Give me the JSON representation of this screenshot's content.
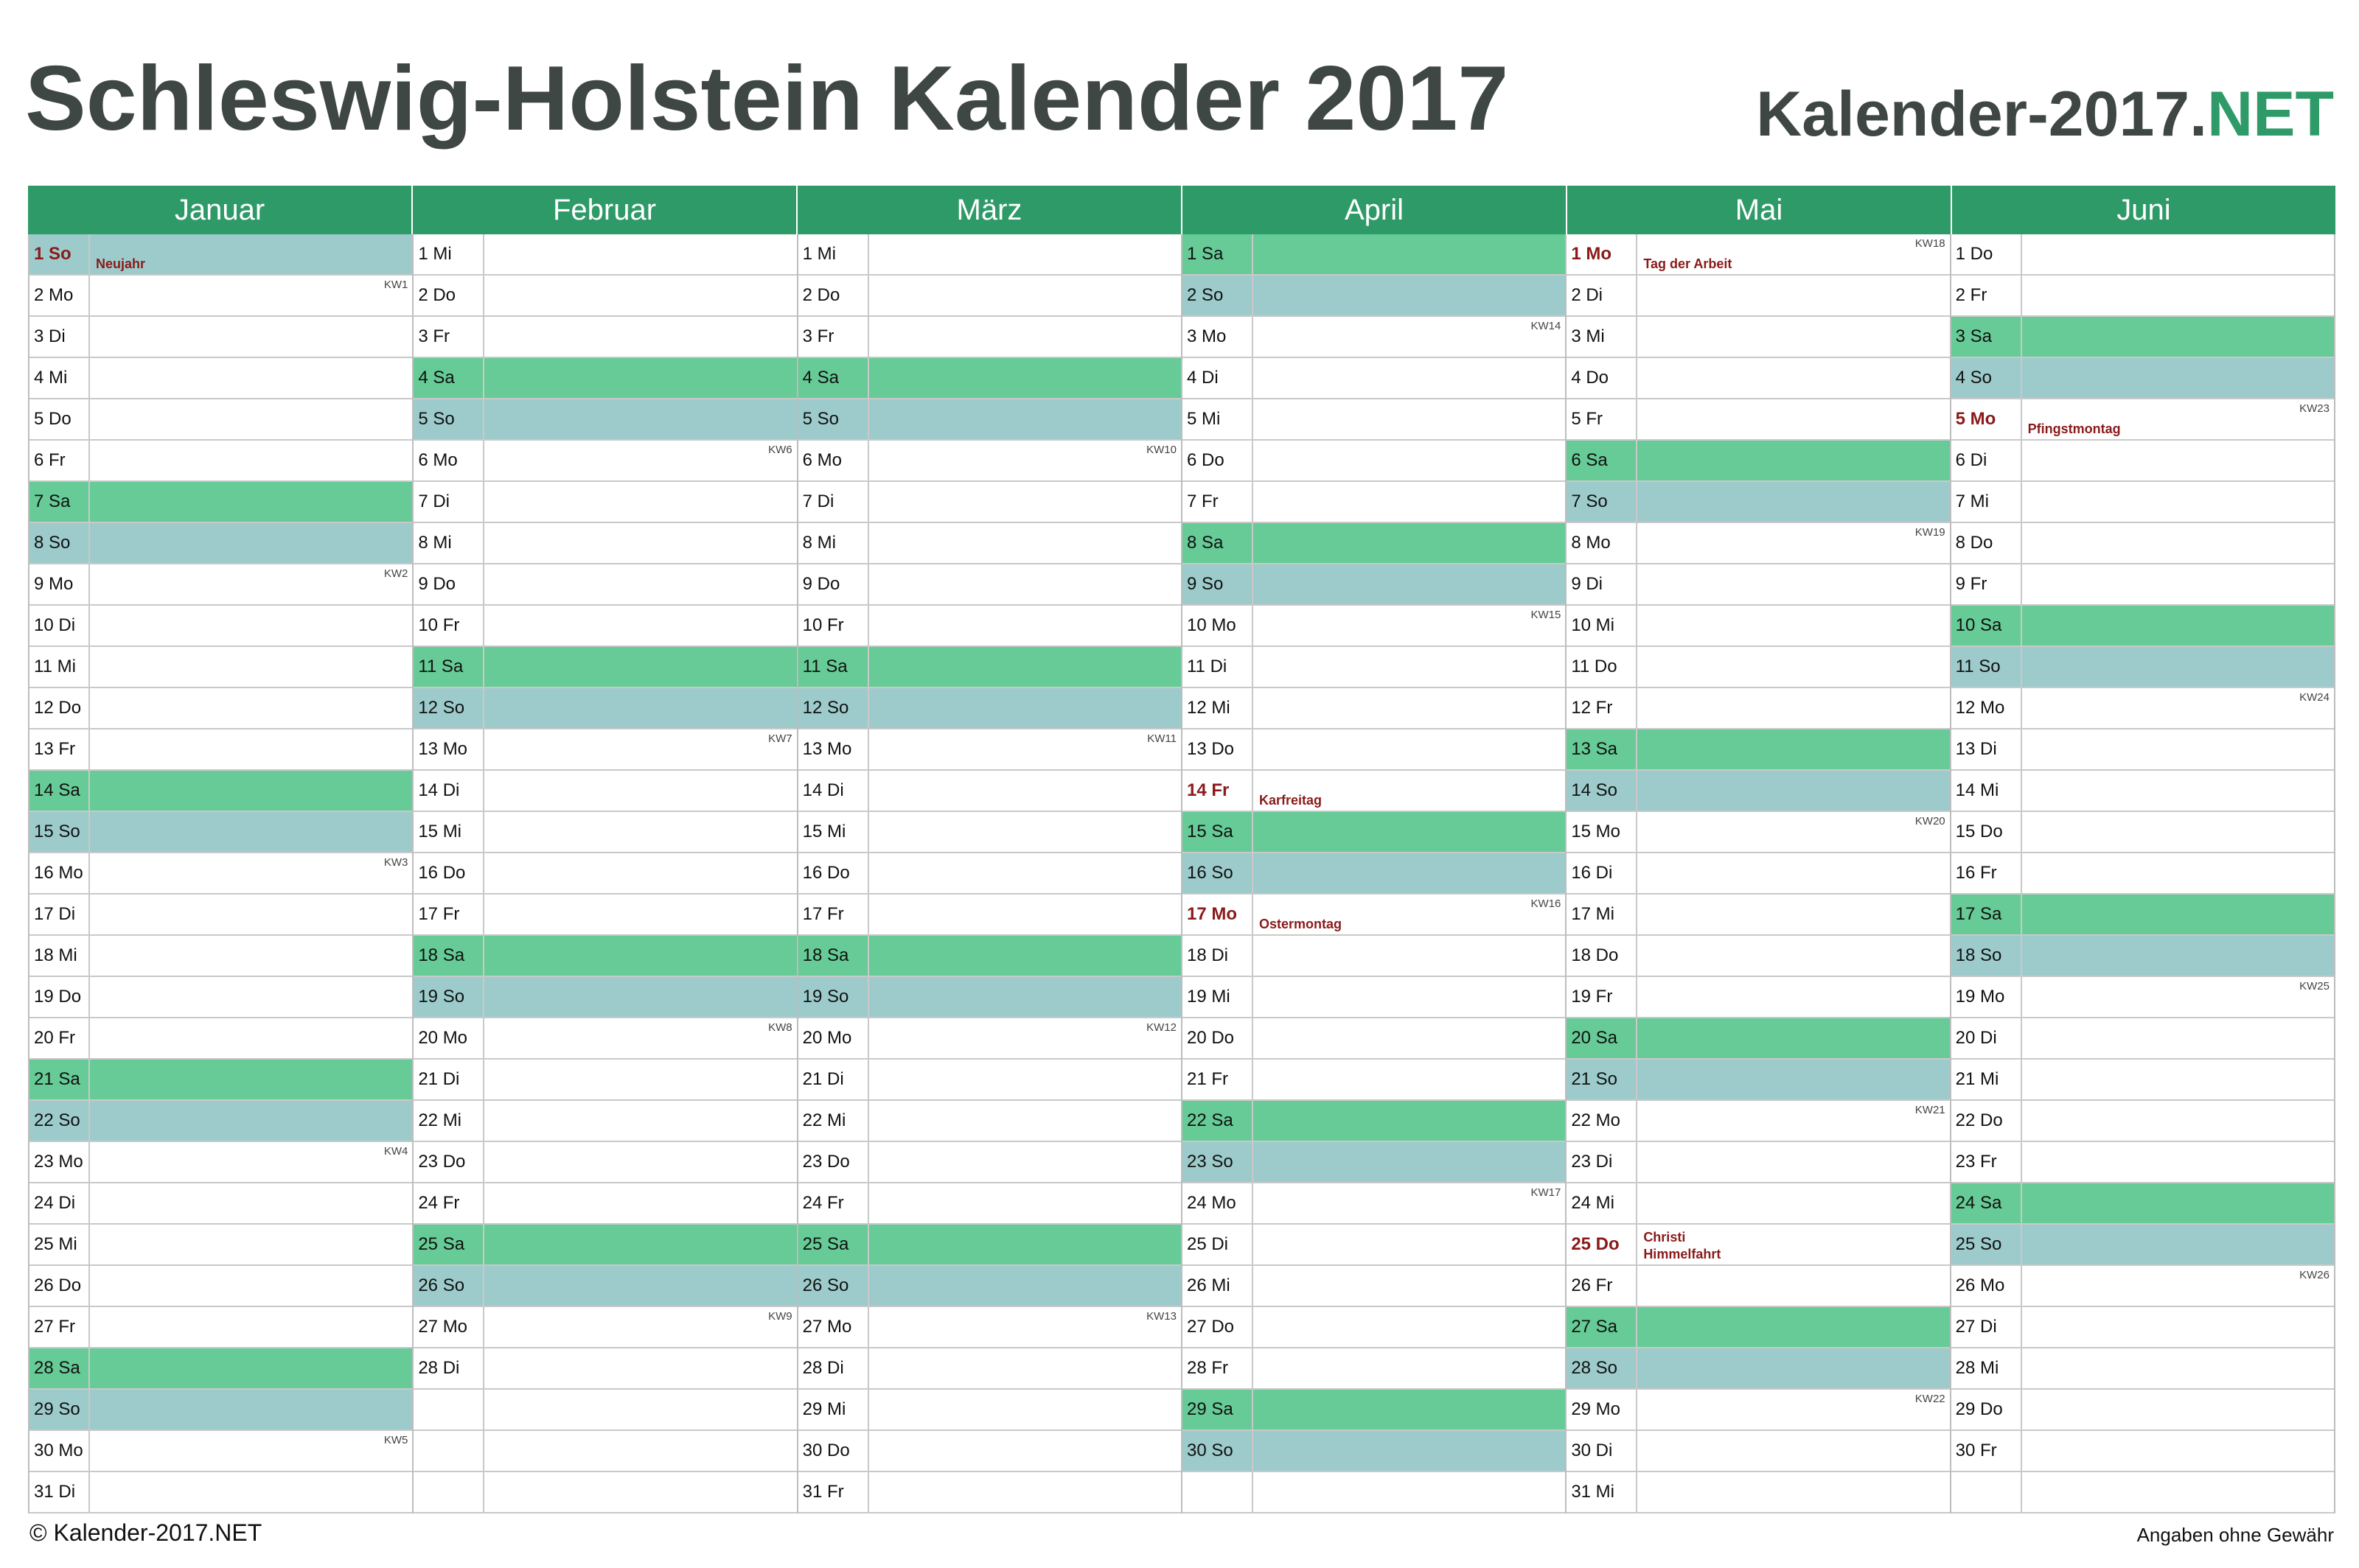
{
  "title": "Schleswig-Holstein Kalender 2017",
  "brand": {
    "main": "Kalender-2017.",
    "accent": "NET"
  },
  "colors": {
    "header": "#2e9a68",
    "saturday": "#66cb96",
    "sunday": "#9dcbcb",
    "holiday_text": "#8b1a1a",
    "title_text": "#3f4744"
  },
  "footer": {
    "left": "© Kalender-2017.NET",
    "right": "Angaben ohne Gewähr"
  },
  "months": [
    {
      "name": "Januar",
      "days": [
        {
          "label": "1 So",
          "type": "sun",
          "holiday": "Neujahr"
        },
        {
          "label": "2 Mo",
          "kw": "KW1"
        },
        {
          "label": "3 Di"
        },
        {
          "label": "4 Mi"
        },
        {
          "label": "5 Do"
        },
        {
          "label": "6 Fr"
        },
        {
          "label": "7 Sa",
          "type": "sat"
        },
        {
          "label": "8 So",
          "type": "sun"
        },
        {
          "label": "9 Mo",
          "kw": "KW2"
        },
        {
          "label": "10 Di"
        },
        {
          "label": "11 Mi"
        },
        {
          "label": "12 Do"
        },
        {
          "label": "13 Fr"
        },
        {
          "label": "14 Sa",
          "type": "sat"
        },
        {
          "label": "15 So",
          "type": "sun"
        },
        {
          "label": "16 Mo",
          "kw": "KW3"
        },
        {
          "label": "17 Di"
        },
        {
          "label": "18 Mi"
        },
        {
          "label": "19 Do"
        },
        {
          "label": "20 Fr"
        },
        {
          "label": "21 Sa",
          "type": "sat"
        },
        {
          "label": "22 So",
          "type": "sun"
        },
        {
          "label": "23 Mo",
          "kw": "KW4"
        },
        {
          "label": "24 Di"
        },
        {
          "label": "25 Mi"
        },
        {
          "label": "26 Do"
        },
        {
          "label": "27 Fr"
        },
        {
          "label": "28 Sa",
          "type": "sat"
        },
        {
          "label": "29 So",
          "type": "sun"
        },
        {
          "label": "30 Mo",
          "kw": "KW5"
        },
        {
          "label": "31 Di"
        }
      ]
    },
    {
      "name": "Februar",
      "days": [
        {
          "label": "1 Mi"
        },
        {
          "label": "2 Do"
        },
        {
          "label": "3 Fr"
        },
        {
          "label": "4 Sa",
          "type": "sat"
        },
        {
          "label": "5 So",
          "type": "sun"
        },
        {
          "label": "6 Mo",
          "kw": "KW6"
        },
        {
          "label": "7 Di"
        },
        {
          "label": "8 Mi"
        },
        {
          "label": "9 Do"
        },
        {
          "label": "10 Fr"
        },
        {
          "label": "11 Sa",
          "type": "sat"
        },
        {
          "label": "12 So",
          "type": "sun"
        },
        {
          "label": "13 Mo",
          "kw": "KW7"
        },
        {
          "label": "14 Di"
        },
        {
          "label": "15 Mi"
        },
        {
          "label": "16 Do"
        },
        {
          "label": "17 Fr"
        },
        {
          "label": "18 Sa",
          "type": "sat"
        },
        {
          "label": "19 So",
          "type": "sun"
        },
        {
          "label": "20 Mo",
          "kw": "KW8"
        },
        {
          "label": "21 Di"
        },
        {
          "label": "22 Mi"
        },
        {
          "label": "23 Do"
        },
        {
          "label": "24 Fr"
        },
        {
          "label": "25 Sa",
          "type": "sat"
        },
        {
          "label": "26 So",
          "type": "sun"
        },
        {
          "label": "27 Mo",
          "kw": "KW9"
        },
        {
          "label": "28 Di"
        }
      ]
    },
    {
      "name": "März",
      "days": [
        {
          "label": "1 Mi"
        },
        {
          "label": "2 Do"
        },
        {
          "label": "3 Fr"
        },
        {
          "label": "4 Sa",
          "type": "sat"
        },
        {
          "label": "5 So",
          "type": "sun"
        },
        {
          "label": "6 Mo",
          "kw": "KW10"
        },
        {
          "label": "7 Di"
        },
        {
          "label": "8 Mi"
        },
        {
          "label": "9 Do"
        },
        {
          "label": "10 Fr"
        },
        {
          "label": "11 Sa",
          "type": "sat"
        },
        {
          "label": "12 So",
          "type": "sun"
        },
        {
          "label": "13 Mo",
          "kw": "KW11"
        },
        {
          "label": "14 Di"
        },
        {
          "label": "15 Mi"
        },
        {
          "label": "16 Do"
        },
        {
          "label": "17 Fr"
        },
        {
          "label": "18 Sa",
          "type": "sat"
        },
        {
          "label": "19 So",
          "type": "sun"
        },
        {
          "label": "20 Mo",
          "kw": "KW12"
        },
        {
          "label": "21 Di"
        },
        {
          "label": "22 Mi"
        },
        {
          "label": "23 Do"
        },
        {
          "label": "24 Fr"
        },
        {
          "label": "25 Sa",
          "type": "sat"
        },
        {
          "label": "26 So",
          "type": "sun"
        },
        {
          "label": "27 Mo",
          "kw": "KW13"
        },
        {
          "label": "28 Di"
        },
        {
          "label": "29 Mi"
        },
        {
          "label": "30 Do"
        },
        {
          "label": "31 Fr"
        }
      ]
    },
    {
      "name": "April",
      "days": [
        {
          "label": "1 Sa",
          "type": "sat"
        },
        {
          "label": "2 So",
          "type": "sun"
        },
        {
          "label": "3 Mo",
          "kw": "KW14"
        },
        {
          "label": "4 Di"
        },
        {
          "label": "5 Mi"
        },
        {
          "label": "6 Do"
        },
        {
          "label": "7 Fr"
        },
        {
          "label": "8 Sa",
          "type": "sat"
        },
        {
          "label": "9 So",
          "type": "sun"
        },
        {
          "label": "10 Mo",
          "kw": "KW15"
        },
        {
          "label": "11 Di"
        },
        {
          "label": "12 Mi"
        },
        {
          "label": "13 Do"
        },
        {
          "label": "14 Fr",
          "holiday": "Karfreitag"
        },
        {
          "label": "15 Sa",
          "type": "sat"
        },
        {
          "label": "16 So",
          "type": "sun"
        },
        {
          "label": "17 Mo",
          "kw": "KW16",
          "holiday": "Ostermontag"
        },
        {
          "label": "18 Di"
        },
        {
          "label": "19 Mi"
        },
        {
          "label": "20 Do"
        },
        {
          "label": "21 Fr"
        },
        {
          "label": "22 Sa",
          "type": "sat"
        },
        {
          "label": "23 So",
          "type": "sun"
        },
        {
          "label": "24 Mo",
          "kw": "KW17"
        },
        {
          "label": "25 Di"
        },
        {
          "label": "26 Mi"
        },
        {
          "label": "27 Do"
        },
        {
          "label": "28 Fr"
        },
        {
          "label": "29 Sa",
          "type": "sat"
        },
        {
          "label": "30 So",
          "type": "sun"
        }
      ]
    },
    {
      "name": "Mai",
      "days": [
        {
          "label": "1 Mo",
          "kw": "KW18",
          "holiday": "Tag der Arbeit"
        },
        {
          "label": "2 Di"
        },
        {
          "label": "3 Mi"
        },
        {
          "label": "4 Do"
        },
        {
          "label": "5 Fr"
        },
        {
          "label": "6 Sa",
          "type": "sat"
        },
        {
          "label": "7 So",
          "type": "sun"
        },
        {
          "label": "8 Mo",
          "kw": "KW19"
        },
        {
          "label": "9 Di"
        },
        {
          "label": "10 Mi"
        },
        {
          "label": "11 Do"
        },
        {
          "label": "12 Fr"
        },
        {
          "label": "13 Sa",
          "type": "sat"
        },
        {
          "label": "14 So",
          "type": "sun"
        },
        {
          "label": "15 Mo",
          "kw": "KW20"
        },
        {
          "label": "16 Di"
        },
        {
          "label": "17 Mi"
        },
        {
          "label": "18 Do"
        },
        {
          "label": "19 Fr"
        },
        {
          "label": "20 Sa",
          "type": "sat"
        },
        {
          "label": "21 So",
          "type": "sun"
        },
        {
          "label": "22 Mo",
          "kw": "KW21"
        },
        {
          "label": "23 Di"
        },
        {
          "label": "24 Mi"
        },
        {
          "label": "25 Do",
          "holiday": "Christi Himmelfahrt"
        },
        {
          "label": "26 Fr"
        },
        {
          "label": "27 Sa",
          "type": "sat"
        },
        {
          "label": "28 So",
          "type": "sun"
        },
        {
          "label": "29 Mo",
          "kw": "KW22"
        },
        {
          "label": "30 Di"
        },
        {
          "label": "31 Mi"
        }
      ]
    },
    {
      "name": "Juni",
      "days": [
        {
          "label": "1 Do"
        },
        {
          "label": "2 Fr"
        },
        {
          "label": "3 Sa",
          "type": "sat"
        },
        {
          "label": "4 So",
          "type": "sun"
        },
        {
          "label": "5 Mo",
          "kw": "KW23",
          "holiday": "Pfingstmontag"
        },
        {
          "label": "6 Di"
        },
        {
          "label": "7 Mi"
        },
        {
          "label": "8 Do"
        },
        {
          "label": "9 Fr"
        },
        {
          "label": "10 Sa",
          "type": "sat"
        },
        {
          "label": "11 So",
          "type": "sun"
        },
        {
          "label": "12 Mo",
          "kw": "KW24"
        },
        {
          "label": "13 Di"
        },
        {
          "label": "14 Mi"
        },
        {
          "label": "15 Do"
        },
        {
          "label": "16 Fr"
        },
        {
          "label": "17 Sa",
          "type": "sat"
        },
        {
          "label": "18 So",
          "type": "sun"
        },
        {
          "label": "19 Mo",
          "kw": "KW25"
        },
        {
          "label": "20 Di"
        },
        {
          "label": "21 Mi"
        },
        {
          "label": "22 Do"
        },
        {
          "label": "23 Fr"
        },
        {
          "label": "24 Sa",
          "type": "sat"
        },
        {
          "label": "25 So",
          "type": "sun"
        },
        {
          "label": "26 Mo",
          "kw": "KW26"
        },
        {
          "label": "27 Di"
        },
        {
          "label": "28 Mi"
        },
        {
          "label": "29 Do"
        },
        {
          "label": "30 Fr"
        }
      ]
    }
  ]
}
